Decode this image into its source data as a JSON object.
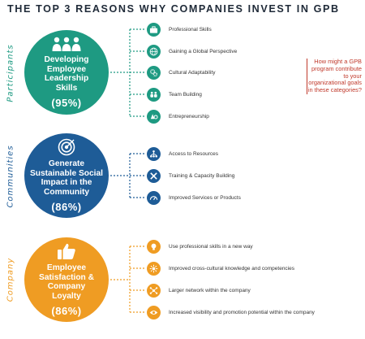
{
  "title": "THE TOP 3 REASONS WHY COMPANIES INVEST IN GPB",
  "callout": "How might a GPB program contribute to your organizational goals in these categories?",
  "colors": {
    "green": "#1e9a82",
    "blue": "#1e5c97",
    "orange": "#ef9c23",
    "callout": "#c0392b"
  },
  "sections": [
    {
      "side_label": "Participants",
      "circle_text": "Developing Employee Leadership Skills",
      "percent": "(95%)",
      "icon": "people-group-icon",
      "items": [
        {
          "label": "Professional Skills",
          "icon": "briefcase-icon"
        },
        {
          "label": "Gaining a Global Perspective",
          "icon": "globe-icon"
        },
        {
          "label": "Cultural Adaptability",
          "icon": "gears-icon"
        },
        {
          "label": "Team Building",
          "icon": "team-icon"
        },
        {
          "label": "Entrepreneurship",
          "icon": "idea-icon"
        }
      ]
    },
    {
      "side_label": "Communities",
      "circle_text": "Generate Sustainable Social Impact in the Community",
      "percent": "(86%)",
      "icon": "target-icon",
      "items": [
        {
          "label": "Access to Resources",
          "icon": "network-icon"
        },
        {
          "label": "Training & Capacity Building",
          "icon": "tools-icon"
        },
        {
          "label": "Improved Services or Products",
          "icon": "gauge-icon"
        }
      ]
    },
    {
      "side_label": "Company",
      "circle_text": "Employee Satisfaction & Company Loyalty",
      "percent": "(86%)",
      "icon": "thumbs-up-icon",
      "items": [
        {
          "label": "Use professional skills in a new way",
          "icon": "lightbulb-icon"
        },
        {
          "label": "Improved cross-cultural knowledge and competencies",
          "icon": "cross-cultural-icon"
        },
        {
          "label": "Larger network within the company",
          "icon": "network-nodes-icon"
        },
        {
          "label": "Increased visibility and promotion potential within the company",
          "icon": "eye-icon"
        }
      ]
    }
  ]
}
